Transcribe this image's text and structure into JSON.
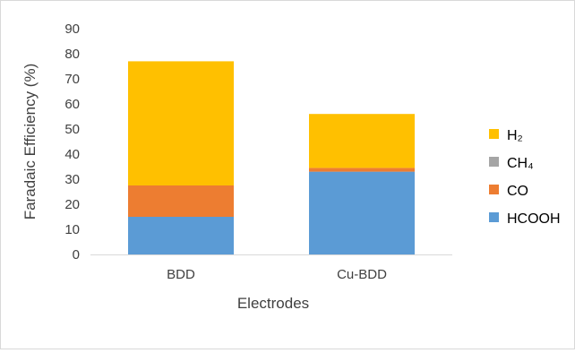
{
  "chart_data": {
    "type": "bar",
    "stacked": true,
    "title": "",
    "xlabel": "Electrodes",
    "ylabel": "Faradaic Efficiency (%)",
    "ylim": [
      0,
      90
    ],
    "yticks": [
      0,
      10,
      20,
      30,
      40,
      50,
      60,
      70,
      80,
      90
    ],
    "grid": false,
    "legend_position": "right",
    "categories": [
      "BDD",
      "Cu-BDD"
    ],
    "series": [
      {
        "name": "HCOOH",
        "color": "#5b9bd5",
        "values": [
          15,
          33
        ]
      },
      {
        "name": "CO",
        "color": "#ed7d31",
        "values": [
          12.5,
          1.5
        ]
      },
      {
        "name": "CH₄",
        "color": "#a5a5a5",
        "values": [
          0,
          0
        ]
      },
      {
        "name": "H₂",
        "color": "#ffc000",
        "values": [
          49.5,
          21.5
        ]
      }
    ]
  }
}
